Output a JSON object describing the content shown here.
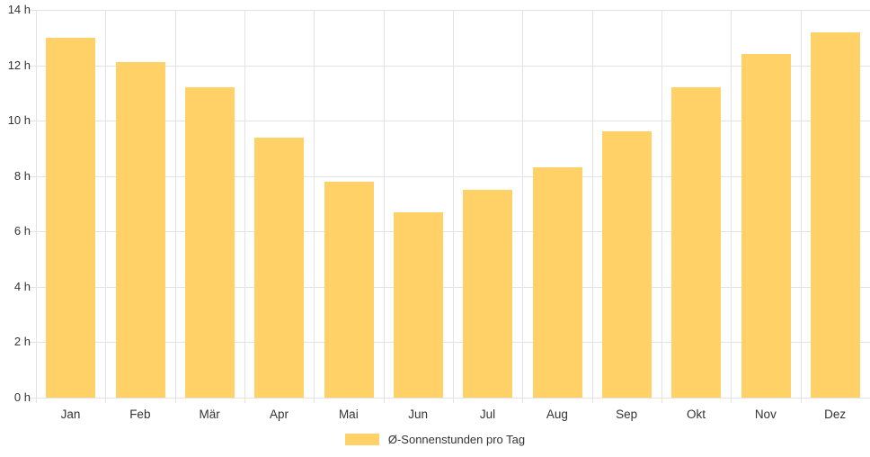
{
  "chart_data": {
    "type": "bar",
    "title": "",
    "xlabel": "",
    "ylabel": "",
    "categories": [
      "Jan",
      "Feb",
      "Mär",
      "Apr",
      "Mai",
      "Jun",
      "Jul",
      "Aug",
      "Sep",
      "Okt",
      "Nov",
      "Dez"
    ],
    "values": [
      13.0,
      12.1,
      11.2,
      9.4,
      7.8,
      6.7,
      7.5,
      8.3,
      9.6,
      11.2,
      12.4,
      13.2
    ],
    "series_name": "Ø-Sonnenstunden pro Tag",
    "ylim": [
      0,
      14
    ],
    "ytick_step": 2,
    "ytick_labels": [
      "0 h",
      "2 h",
      "4 h",
      "6 h",
      "8 h",
      "10 h",
      "12 h",
      "14 h"
    ],
    "grid": true,
    "legend": "Ø-Sonnenstunden pro Tag",
    "legend_position": "bottom",
    "colors": {
      "bar": "#FFD166",
      "grid": "#E3E3E3",
      "text": "#333333",
      "background": "#FFFFFF"
    }
  }
}
